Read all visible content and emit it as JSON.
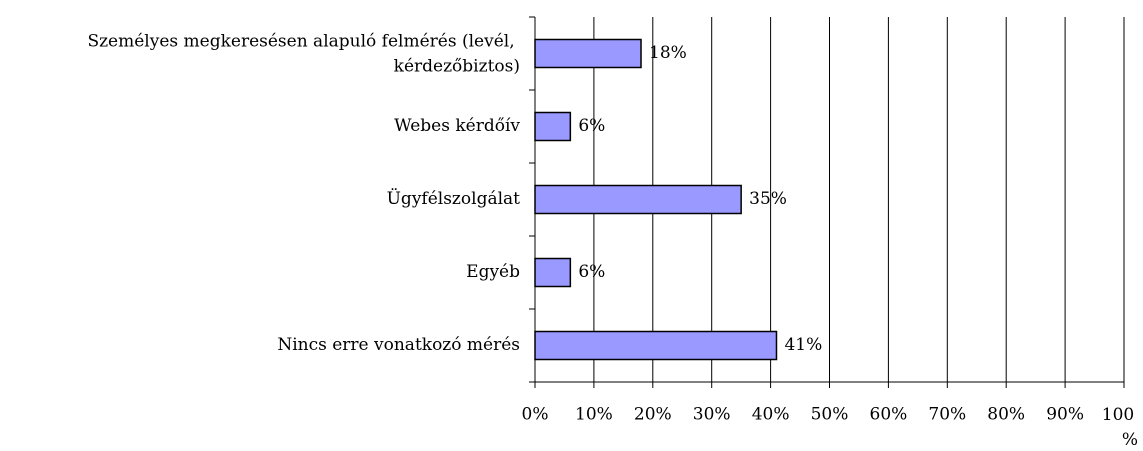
{
  "chart_data": {
    "type": "barh",
    "categories": [
      "Személyes megkeresésen alapuló felmérés (levél, kérdezőbiztos)",
      "Webes kérdőív",
      "Ügyfélszolgálat",
      "Egyéb",
      "Nincs erre vonatkozó mérés"
    ],
    "values": [
      18,
      6,
      35,
      6,
      41
    ],
    "value_labels": [
      "18%",
      "6%",
      "35%",
      "6%",
      "41%"
    ],
    "color": "#9999ff",
    "xlim": [
      0,
      100
    ],
    "xticks": [
      {
        "value": 0,
        "label": "0%"
      },
      {
        "value": 10,
        "label": "10%"
      },
      {
        "value": 20,
        "label": "20%"
      },
      {
        "value": 30,
        "label": "30%"
      },
      {
        "value": 40,
        "label": "40%"
      },
      {
        "value": 50,
        "label": "50%"
      },
      {
        "value": 60,
        "label": "60%"
      },
      {
        "value": 70,
        "label": "70%"
      },
      {
        "value": 80,
        "label": "80%"
      },
      {
        "value": 90,
        "label": "90%"
      },
      {
        "value": 100,
        "label": "100%"
      }
    ],
    "grid": true
  }
}
